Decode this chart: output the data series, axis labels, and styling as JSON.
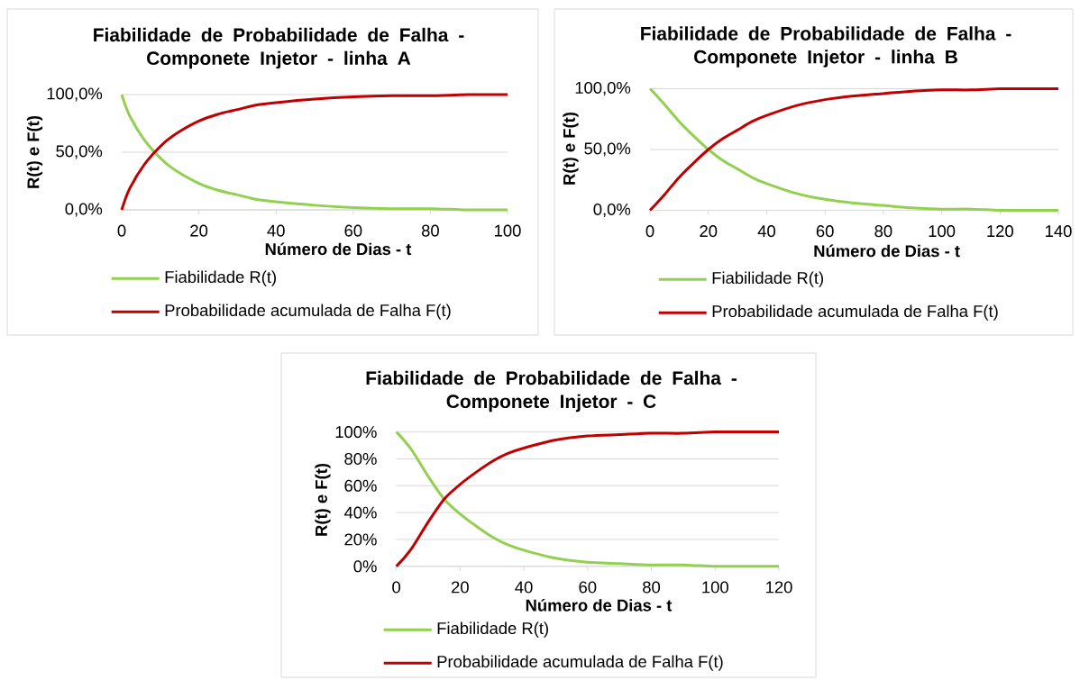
{
  "chart_data": [
    {
      "type": "line",
      "title": "Fiabilidade de Probabilidade de Falha - Componete Injetor - linha A",
      "xlabel": "Número de Dias - t",
      "ylabel": "R(t) e F(t)",
      "xlim": [
        0,
        100
      ],
      "xticks": [
        0,
        20,
        40,
        60,
        80,
        100
      ],
      "ylim": [
        0,
        100
      ],
      "yticks": [
        {
          "value": 0,
          "label": "0,0%"
        },
        {
          "value": 50,
          "label": "50,0%"
        },
        {
          "value": 100,
          "label": "100,0%"
        }
      ],
      "grid": "y",
      "legend": "bottom",
      "x": [
        0,
        1,
        2,
        3,
        4,
        5,
        6,
        8,
        10,
        12,
        15,
        20,
        25,
        30,
        35,
        40,
        50,
        60,
        70,
        80,
        90,
        100
      ],
      "series": [
        {
          "name": "Fiabilidade R(t)",
          "color": "#92d050",
          "values": [
            100,
            90,
            82,
            76,
            70,
            65,
            60,
            52,
            45,
            39,
            32,
            23,
            17,
            13,
            9,
            7,
            4,
            2,
            1,
            1,
            0,
            0
          ]
        },
        {
          "name": "Probabilidade acumulada de Falha F(t)",
          "color": "#c00000",
          "values": [
            0,
            10,
            18,
            24,
            30,
            35,
            40,
            48,
            55,
            61,
            68,
            77,
            83,
            87,
            91,
            93,
            96,
            98,
            99,
            99,
            100,
            100
          ]
        }
      ]
    },
    {
      "type": "line",
      "title": "Fiabilidade de Probabilidade de Falha - Componete Injetor - linha B",
      "xlabel": "Número de Dias - t",
      "ylabel": "R(t) e F(t)",
      "xlim": [
        0,
        140
      ],
      "xticks": [
        0,
        20,
        40,
        60,
        80,
        100,
        120,
        140
      ],
      "ylim": [
        0,
        100
      ],
      "yticks": [
        {
          "value": 0,
          "label": "0,0%"
        },
        {
          "value": 50,
          "label": "50,0%"
        },
        {
          "value": 100,
          "label": "100,0%"
        }
      ],
      "grid": "y",
      "legend": "bottom",
      "x": [
        0,
        2,
        5,
        10,
        15,
        20,
        25,
        30,
        35,
        40,
        50,
        60,
        70,
        80,
        90,
        100,
        110,
        120,
        130,
        140
      ],
      "series": [
        {
          "name": "Fiabilidade R(t)",
          "color": "#92d050",
          "values": [
            100,
            95,
            87,
            73,
            61,
            50,
            41,
            34,
            27,
            22,
            14,
            9,
            6,
            4,
            2,
            1,
            1,
            0,
            0,
            0
          ]
        },
        {
          "name": "Probabilidade acumulada de Falha F(t)",
          "color": "#c00000",
          "values": [
            0,
            5,
            13,
            27,
            39,
            50,
            59,
            66,
            73,
            78,
            86,
            91,
            94,
            96,
            98,
            99,
            99,
            100,
            100,
            100
          ]
        }
      ]
    },
    {
      "type": "line",
      "title": "Fiabilidade de Probabilidade de Falha - Componete Injetor - C",
      "xlabel": "Número de Dias - t",
      "ylabel": "R(t) e F(t)",
      "xlim": [
        0,
        120
      ],
      "xticks": [
        0,
        20,
        40,
        60,
        80,
        100,
        120
      ],
      "ylim": [
        0,
        100
      ],
      "yticks": [
        {
          "value": 0,
          "label": "0%"
        },
        {
          "value": 20,
          "label": "20%"
        },
        {
          "value": 40,
          "label": "40%"
        },
        {
          "value": 60,
          "label": "60%"
        },
        {
          "value": 80,
          "label": "80%"
        },
        {
          "value": 100,
          "label": "100%"
        }
      ],
      "grid": "y",
      "legend": "bottom",
      "x": [
        0,
        2,
        5,
        10,
        15,
        20,
        25,
        30,
        35,
        40,
        50,
        60,
        70,
        80,
        90,
        100,
        110,
        120
      ],
      "series": [
        {
          "name": "Fiabilidade R(t)",
          "color": "#92d050",
          "values": [
            100,
            95,
            86,
            67,
            50,
            39,
            30,
            22,
            16,
            12,
            6,
            3,
            2,
            1,
            1,
            0,
            0,
            0
          ]
        },
        {
          "name": "Probabilidade acumulada de Falha F(t)",
          "color": "#c00000",
          "values": [
            0,
            5,
            14,
            33,
            50,
            61,
            70,
            78,
            84,
            88,
            94,
            97,
            98,
            99,
            99,
            100,
            100,
            100
          ]
        }
      ]
    }
  ]
}
